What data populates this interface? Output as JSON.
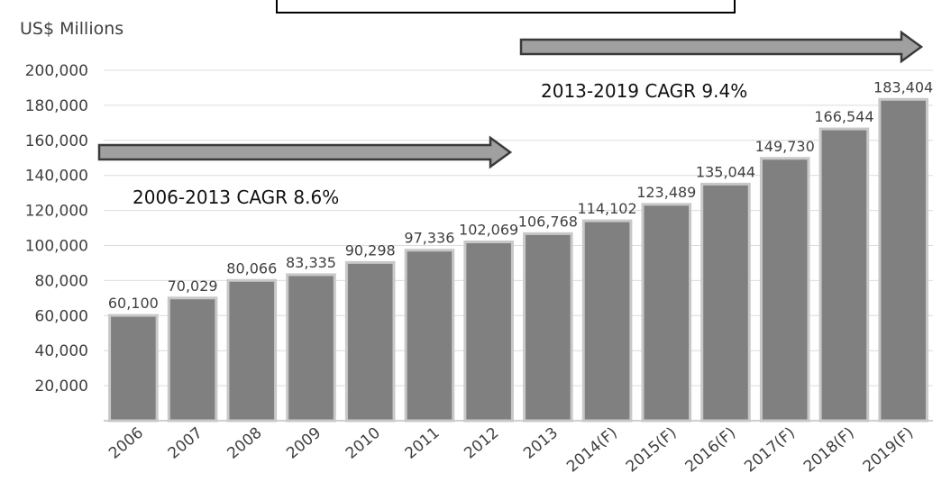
{
  "chart_data": {
    "type": "bar",
    "unit_label": "US$ Millions",
    "categories": [
      "2006",
      "2007",
      "2008",
      "2009",
      "2010",
      "2011",
      "2012",
      "2013",
      "2014(F)",
      "2015(F)",
      "2016(F)",
      "2017(F)",
      "2018(F)",
      "2019(F)"
    ],
    "values": [
      60100,
      70029,
      80066,
      83335,
      90298,
      97336,
      102069,
      106768,
      114102,
      123489,
      135044,
      149730,
      166544,
      183404
    ],
    "value_labels": [
      "60,100",
      "70,029",
      "80,066",
      "83,335",
      "90,298",
      "97,336",
      "102,069",
      "106,768",
      "114,102",
      "123,489",
      "135,044",
      "149,730",
      "166,544",
      "183,404"
    ],
    "y_ticks": [
      "20,000",
      "40,000",
      "60,000",
      "80,000",
      "100,000",
      "120,000",
      "140,000",
      "160,000",
      "180,000",
      "200,000"
    ],
    "y_tick_values": [
      20000,
      40000,
      60000,
      80000,
      100000,
      120000,
      140000,
      160000,
      180000,
      200000
    ],
    "ylim": [
      0,
      200000
    ],
    "grid": true,
    "colors": {
      "bar": "#808080",
      "bar_edge": "#c8c8c8",
      "arrow": "#a0a0a0",
      "grid": "#dcdcdc"
    },
    "annotations": [
      {
        "text": "2006-2013 CAGR 8.6%",
        "from": "2006",
        "to": "2013"
      },
      {
        "text": "2013-2019 CAGR 9.4%",
        "from": "2013",
        "to": "2019(F)"
      }
    ]
  }
}
